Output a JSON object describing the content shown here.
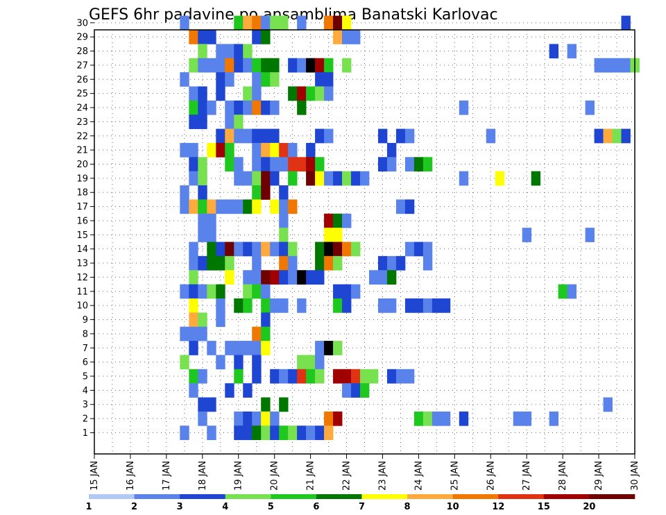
{
  "chart_data": {
    "type": "heatmap",
    "title": "GEFS 6hr padavine po ansamblima Banatski Karlovac",
    "y_ticks": [
      "1",
      "2",
      "3",
      "4",
      "5",
      "6",
      "7",
      "8",
      "9",
      "10",
      "11",
      "12",
      "13",
      "14",
      "15",
      "16",
      "17",
      "18",
      "19",
      "20",
      "21",
      "22",
      "23",
      "24",
      "25",
      "26",
      "27",
      "28",
      "29",
      "30"
    ],
    "x_ticks": [
      "15 JAN",
      "16 JAN",
      "17 JAN",
      "18 JAN",
      "19 JAN",
      "20 JAN",
      "21 JAN",
      "22 JAN",
      "23 JAN",
      "24 JAN",
      "25 JAN",
      "26 JAN",
      "27 JAN",
      "28 JAN",
      "29 JAN",
      "30 JAN"
    ],
    "grid": true,
    "legend_position": "bottom",
    "legend": {
      "ticks": [
        "1",
        "2",
        "3",
        "4",
        "5",
        "6",
        "7",
        "8",
        "10",
        "12",
        "15",
        "20"
      ],
      "colors": [
        "#b4c8f5",
        "#5a82eb",
        "#1e46d2",
        "#78e150",
        "#1ec81e",
        "#007800",
        "#ffff00",
        "#ffaa3c",
        "#f07800",
        "#e13214",
        "#a00000",
        "#6e0000"
      ]
    },
    "cells": [
      [
        30,
        17.5,
        1
      ],
      [
        30,
        19.0,
        4
      ],
      [
        30,
        19.25,
        7
      ],
      [
        30,
        19.5,
        8
      ],
      [
        30,
        19.75,
        1
      ],
      [
        30,
        20.0,
        3
      ],
      [
        30,
        20.25,
        3
      ],
      [
        30,
        20.75,
        1
      ],
      [
        30,
        21.5,
        8
      ],
      [
        30,
        21.75,
        11
      ],
      [
        30,
        22.0,
        6
      ],
      [
        30,
        29.75,
        2
      ],
      [
        29,
        17.75,
        8
      ],
      [
        29,
        18.0,
        2
      ],
      [
        29,
        18.25,
        2
      ],
      [
        29,
        19.5,
        2
      ],
      [
        29,
        19.75,
        5
      ],
      [
        29,
        21.75,
        7
      ],
      [
        29,
        22.0,
        1
      ],
      [
        29,
        22.25,
        1
      ],
      [
        28,
        18.0,
        3
      ],
      [
        28,
        18.5,
        1
      ],
      [
        28,
        18.75,
        1
      ],
      [
        28,
        19.0,
        2
      ],
      [
        28,
        19.25,
        3
      ],
      [
        28,
        27.75,
        2
      ],
      [
        28,
        28.25,
        1
      ],
      [
        27,
        17.75,
        3
      ],
      [
        27,
        18.0,
        1
      ],
      [
        27,
        18.25,
        1
      ],
      [
        27,
        18.5,
        1
      ],
      [
        27,
        18.75,
        8
      ],
      [
        27,
        19.0,
        2
      ],
      [
        27,
        19.25,
        1
      ],
      [
        27,
        19.5,
        4
      ],
      [
        27,
        19.75,
        5
      ],
      [
        27,
        20.0,
        5
      ],
      [
        27,
        20.5,
        2
      ],
      [
        27,
        20.75,
        1
      ],
      [
        27,
        21.0,
        12
      ],
      [
        27,
        21.25,
        10
      ],
      [
        27,
        21.5,
        4
      ],
      [
        27,
        22.0,
        3
      ],
      [
        27,
        29.0,
        1
      ],
      [
        27,
        29.25,
        1
      ],
      [
        27,
        29.5,
        1
      ],
      [
        27,
        29.75,
        1
      ],
      [
        27,
        30.0,
        3
      ],
      [
        26,
        17.5,
        1
      ],
      [
        26,
        18.5,
        2
      ],
      [
        26,
        18.75,
        1
      ],
      [
        26,
        19.5,
        1
      ],
      [
        26,
        19.75,
        4
      ],
      [
        26,
        20.0,
        3
      ],
      [
        26,
        21.25,
        2
      ],
      [
        26,
        21.5,
        2
      ],
      [
        25,
        17.75,
        1
      ],
      [
        25,
        18.0,
        2
      ],
      [
        25,
        18.5,
        2
      ],
      [
        25,
        19.25,
        3
      ],
      [
        25,
        19.5,
        1
      ],
      [
        25,
        20.5,
        5
      ],
      [
        25,
        20.75,
        10
      ],
      [
        25,
        21.0,
        4
      ],
      [
        25,
        21.25,
        3
      ],
      [
        25,
        21.5,
        1
      ],
      [
        24,
        17.75,
        4
      ],
      [
        24,
        18.0,
        2
      ],
      [
        24,
        18.25,
        1
      ],
      [
        24,
        18.75,
        1
      ],
      [
        24,
        19.0,
        2
      ],
      [
        24,
        19.25,
        1
      ],
      [
        24,
        19.5,
        8
      ],
      [
        24,
        19.75,
        2
      ],
      [
        24,
        20.0,
        1
      ],
      [
        24,
        20.75,
        5
      ],
      [
        24,
        25.25,
        1
      ],
      [
        24,
        28.75,
        1
      ],
      [
        23,
        17.75,
        2
      ],
      [
        23,
        18.0,
        2
      ],
      [
        23,
        18.75,
        1
      ],
      [
        23,
        19.0,
        3
      ],
      [
        22,
        18.5,
        2
      ],
      [
        22,
        18.75,
        7
      ],
      [
        22,
        19.0,
        1
      ],
      [
        22,
        19.25,
        1
      ],
      [
        22,
        19.5,
        2
      ],
      [
        22,
        19.75,
        2
      ],
      [
        22,
        20.0,
        2
      ],
      [
        22,
        21.25,
        2
      ],
      [
        22,
        21.5,
        1
      ],
      [
        22,
        23.0,
        2
      ],
      [
        22,
        23.5,
        2
      ],
      [
        22,
        23.75,
        1
      ],
      [
        22,
        26.0,
        1
      ],
      [
        22,
        29.0,
        2
      ],
      [
        22,
        29.25,
        7
      ],
      [
        22,
        29.5,
        3
      ],
      [
        22,
        29.75,
        2
      ],
      [
        21,
        17.5,
        1
      ],
      [
        21,
        17.75,
        1
      ],
      [
        21,
        18.25,
        6
      ],
      [
        21,
        18.5,
        10
      ],
      [
        21,
        18.75,
        4
      ],
      [
        21,
        19.5,
        1
      ],
      [
        21,
        19.75,
        7
      ],
      [
        21,
        20.0,
        6
      ],
      [
        21,
        20.25,
        9
      ],
      [
        21,
        20.5,
        1
      ],
      [
        21,
        21.0,
        2
      ],
      [
        21,
        23.25,
        2
      ],
      [
        20,
        17.75,
        2
      ],
      [
        20,
        18.0,
        3
      ],
      [
        20,
        18.75,
        4
      ],
      [
        20,
        19.0,
        1
      ],
      [
        20,
        19.5,
        1
      ],
      [
        20,
        19.75,
        2
      ],
      [
        20,
        20.0,
        1
      ],
      [
        20,
        20.25,
        1
      ],
      [
        20,
        20.5,
        9
      ],
      [
        20,
        20.75,
        9
      ],
      [
        20,
        21.0,
        10
      ],
      [
        20,
        21.25,
        4
      ],
      [
        20,
        23.0,
        2
      ],
      [
        20,
        23.25,
        1
      ],
      [
        20,
        23.75,
        1
      ],
      [
        20,
        24.0,
        5
      ],
      [
        20,
        24.25,
        4
      ],
      [
        19,
        17.75,
        1
      ],
      [
        19,
        18.0,
        3
      ],
      [
        19,
        19.0,
        1
      ],
      [
        19,
        19.25,
        1
      ],
      [
        19,
        19.5,
        3
      ],
      [
        19,
        19.75,
        11
      ],
      [
        19,
        20.0,
        2
      ],
      [
        19,
        20.5,
        4
      ],
      [
        19,
        21.0,
        11
      ],
      [
        19,
        21.25,
        6
      ],
      [
        19,
        21.5,
        1
      ],
      [
        19,
        21.75,
        2
      ],
      [
        19,
        22.0,
        3
      ],
      [
        19,
        22.25,
        2
      ],
      [
        19,
        22.5,
        1
      ],
      [
        19,
        25.25,
        1
      ],
      [
        19,
        26.25,
        6
      ],
      [
        19,
        27.25,
        5
      ],
      [
        18,
        17.5,
        1
      ],
      [
        18,
        18.0,
        2
      ],
      [
        18,
        19.5,
        4
      ],
      [
        18,
        19.75,
        11
      ],
      [
        18,
        20.25,
        2
      ],
      [
        17,
        17.5,
        1
      ],
      [
        17,
        17.75,
        7
      ],
      [
        17,
        18.0,
        4
      ],
      [
        17,
        18.25,
        7
      ],
      [
        17,
        18.5,
        1
      ],
      [
        17,
        18.75,
        1
      ],
      [
        17,
        19.0,
        1
      ],
      [
        17,
        19.25,
        5
      ],
      [
        17,
        19.5,
        6
      ],
      [
        17,
        20.0,
        6
      ],
      [
        17,
        20.25,
        1
      ],
      [
        17,
        20.5,
        8
      ],
      [
        17,
        23.5,
        1
      ],
      [
        17,
        23.75,
        2
      ],
      [
        16,
        18.0,
        1
      ],
      [
        16,
        18.25,
        1
      ],
      [
        16,
        20.25,
        1
      ],
      [
        16,
        21.5,
        10
      ],
      [
        16,
        21.75,
        5
      ],
      [
        16,
        22.0,
        1
      ],
      [
        15,
        18.0,
        1
      ],
      [
        15,
        18.25,
        1
      ],
      [
        15,
        20.25,
        3
      ],
      [
        15,
        21.5,
        6
      ],
      [
        15,
        21.75,
        6
      ],
      [
        15,
        27.0,
        1
      ],
      [
        15,
        28.75,
        1
      ],
      [
        14,
        17.75,
        1
      ],
      [
        14,
        18.25,
        5
      ],
      [
        14,
        18.5,
        2
      ],
      [
        14,
        18.75,
        11
      ],
      [
        14,
        19.0,
        1
      ],
      [
        14,
        19.25,
        2
      ],
      [
        14,
        19.5,
        1
      ],
      [
        14,
        19.75,
        7
      ],
      [
        14,
        20.0,
        1
      ],
      [
        14,
        20.25,
        2
      ],
      [
        14,
        20.5,
        3
      ],
      [
        14,
        21.25,
        5
      ],
      [
        14,
        21.5,
        12
      ],
      [
        14,
        21.75,
        11
      ],
      [
        14,
        22.0,
        8
      ],
      [
        14,
        22.25,
        3
      ],
      [
        14,
        23.75,
        1
      ],
      [
        14,
        24.0,
        2
      ],
      [
        14,
        24.25,
        1
      ],
      [
        13,
        17.75,
        1
      ],
      [
        13,
        18.0,
        2
      ],
      [
        13,
        18.25,
        5
      ],
      [
        13,
        18.5,
        5
      ],
      [
        13,
        18.75,
        3
      ],
      [
        13,
        19.5,
        1
      ],
      [
        13,
        20.25,
        8
      ],
      [
        13,
        20.5,
        1
      ],
      [
        13,
        21.25,
        5
      ],
      [
        13,
        21.5,
        8
      ],
      [
        13,
        21.75,
        3
      ],
      [
        13,
        23.0,
        2
      ],
      [
        13,
        23.25,
        1
      ],
      [
        13,
        23.5,
        2
      ],
      [
        13,
        24.25,
        1
      ],
      [
        12,
        17.75,
        3
      ],
      [
        12,
        18.75,
        6
      ],
      [
        12,
        19.25,
        1
      ],
      [
        12,
        19.5,
        1
      ],
      [
        12,
        19.75,
        11
      ],
      [
        12,
        20.0,
        10
      ],
      [
        12,
        20.25,
        2
      ],
      [
        12,
        20.5,
        1
      ],
      [
        12,
        20.75,
        12
      ],
      [
        12,
        21.0,
        2
      ],
      [
        12,
        21.25,
        2
      ],
      [
        12,
        22.75,
        1
      ],
      [
        12,
        23.0,
        1
      ],
      [
        12,
        23.25,
        5
      ],
      [
        11,
        17.5,
        1
      ],
      [
        11,
        17.75,
        2
      ],
      [
        11,
        18.0,
        1
      ],
      [
        11,
        18.25,
        3
      ],
      [
        11,
        18.5,
        5
      ],
      [
        11,
        19.25,
        3
      ],
      [
        11,
        19.5,
        4
      ],
      [
        11,
        19.75,
        1
      ],
      [
        11,
        21.75,
        2
      ],
      [
        11,
        22.0,
        2
      ],
      [
        11,
        22.25,
        1
      ],
      [
        11,
        28.0,
        4
      ],
      [
        11,
        28.25,
        1
      ],
      [
        10,
        17.75,
        6
      ],
      [
        10,
        18.5,
        1
      ],
      [
        10,
        19.0,
        5
      ],
      [
        10,
        19.25,
        4
      ],
      [
        10,
        19.75,
        4
      ],
      [
        10,
        20.0,
        1
      ],
      [
        10,
        20.25,
        1
      ],
      [
        10,
        20.75,
        1
      ],
      [
        10,
        21.75,
        4
      ],
      [
        10,
        22.0,
        2
      ],
      [
        10,
        23.0,
        1
      ],
      [
        10,
        23.25,
        1
      ],
      [
        10,
        23.75,
        2
      ],
      [
        10,
        24.0,
        2
      ],
      [
        10,
        24.25,
        1
      ],
      [
        10,
        24.5,
        2
      ],
      [
        10,
        24.75,
        2
      ],
      [
        9,
        17.75,
        7
      ],
      [
        9,
        18.0,
        3
      ],
      [
        9,
        18.5,
        1
      ],
      [
        9,
        19.75,
        2
      ],
      [
        8,
        17.5,
        1
      ],
      [
        8,
        17.75,
        1
      ],
      [
        8,
        18.0,
        1
      ],
      [
        8,
        19.5,
        8
      ],
      [
        8,
        19.75,
        4
      ],
      [
        7,
        17.75,
        2
      ],
      [
        7,
        18.25,
        1
      ],
      [
        7,
        18.75,
        1
      ],
      [
        7,
        19.0,
        1
      ],
      [
        7,
        19.25,
        1
      ],
      [
        7,
        19.5,
        1
      ],
      [
        7,
        19.75,
        6
      ],
      [
        7,
        21.25,
        1
      ],
      [
        7,
        21.5,
        12
      ],
      [
        7,
        21.75,
        3
      ],
      [
        6,
        17.5,
        3
      ],
      [
        6,
        18.5,
        1
      ],
      [
        6,
        19.0,
        2
      ],
      [
        6,
        19.5,
        2
      ],
      [
        6,
        20.75,
        3
      ],
      [
        6,
        21.0,
        3
      ],
      [
        6,
        21.25,
        1
      ],
      [
        5,
        17.75,
        4
      ],
      [
        5,
        18.0,
        1
      ],
      [
        5,
        19.0,
        4
      ],
      [
        5,
        19.5,
        2
      ],
      [
        5,
        20.0,
        2
      ],
      [
        5,
        20.25,
        1
      ],
      [
        5,
        20.5,
        2
      ],
      [
        5,
        20.75,
        9
      ],
      [
        5,
        21.0,
        4
      ],
      [
        5,
        21.25,
        3
      ],
      [
        5,
        21.75,
        10
      ],
      [
        5,
        22.0,
        10
      ],
      [
        5,
        22.25,
        9
      ],
      [
        5,
        22.5,
        3
      ],
      [
        5,
        22.75,
        3
      ],
      [
        5,
        23.25,
        2
      ],
      [
        5,
        23.5,
        1
      ],
      [
        5,
        23.75,
        1
      ],
      [
        4,
        17.75,
        1
      ],
      [
        4,
        18.75,
        2
      ],
      [
        4,
        19.25,
        2
      ],
      [
        4,
        22.0,
        1
      ],
      [
        4,
        22.25,
        2
      ],
      [
        4,
        22.5,
        4
      ],
      [
        3,
        18.0,
        2
      ],
      [
        3,
        18.25,
        2
      ],
      [
        3,
        19.75,
        5
      ],
      [
        3,
        20.25,
        5
      ],
      [
        3,
        29.25,
        1
      ],
      [
        2,
        18.0,
        1
      ],
      [
        2,
        19.0,
        1
      ],
      [
        2,
        19.25,
        2
      ],
      [
        2,
        19.5,
        1
      ],
      [
        2,
        19.75,
        6
      ],
      [
        2,
        20.0,
        1
      ],
      [
        2,
        21.5,
        8
      ],
      [
        2,
        21.75,
        10
      ],
      [
        2,
        24.0,
        4
      ],
      [
        2,
        24.25,
        3
      ],
      [
        2,
        24.5,
        1
      ],
      [
        2,
        24.75,
        1
      ],
      [
        2,
        25.25,
        2
      ],
      [
        2,
        26.75,
        1
      ],
      [
        2,
        27.0,
        1
      ],
      [
        2,
        27.75,
        1
      ],
      [
        1,
        17.5,
        1
      ],
      [
        1,
        18.25,
        1
      ],
      [
        1,
        19.0,
        2
      ],
      [
        1,
        19.25,
        2
      ],
      [
        1,
        19.5,
        5
      ],
      [
        1,
        19.75,
        3
      ],
      [
        1,
        20.0,
        2
      ],
      [
        1,
        20.25,
        4
      ],
      [
        1,
        20.5,
        3
      ],
      [
        1,
        20.75,
        2
      ],
      [
        1,
        21.0,
        1
      ],
      [
        1,
        21.25,
        2
      ],
      [
        1,
        21.5,
        7
      ]
    ]
  }
}
